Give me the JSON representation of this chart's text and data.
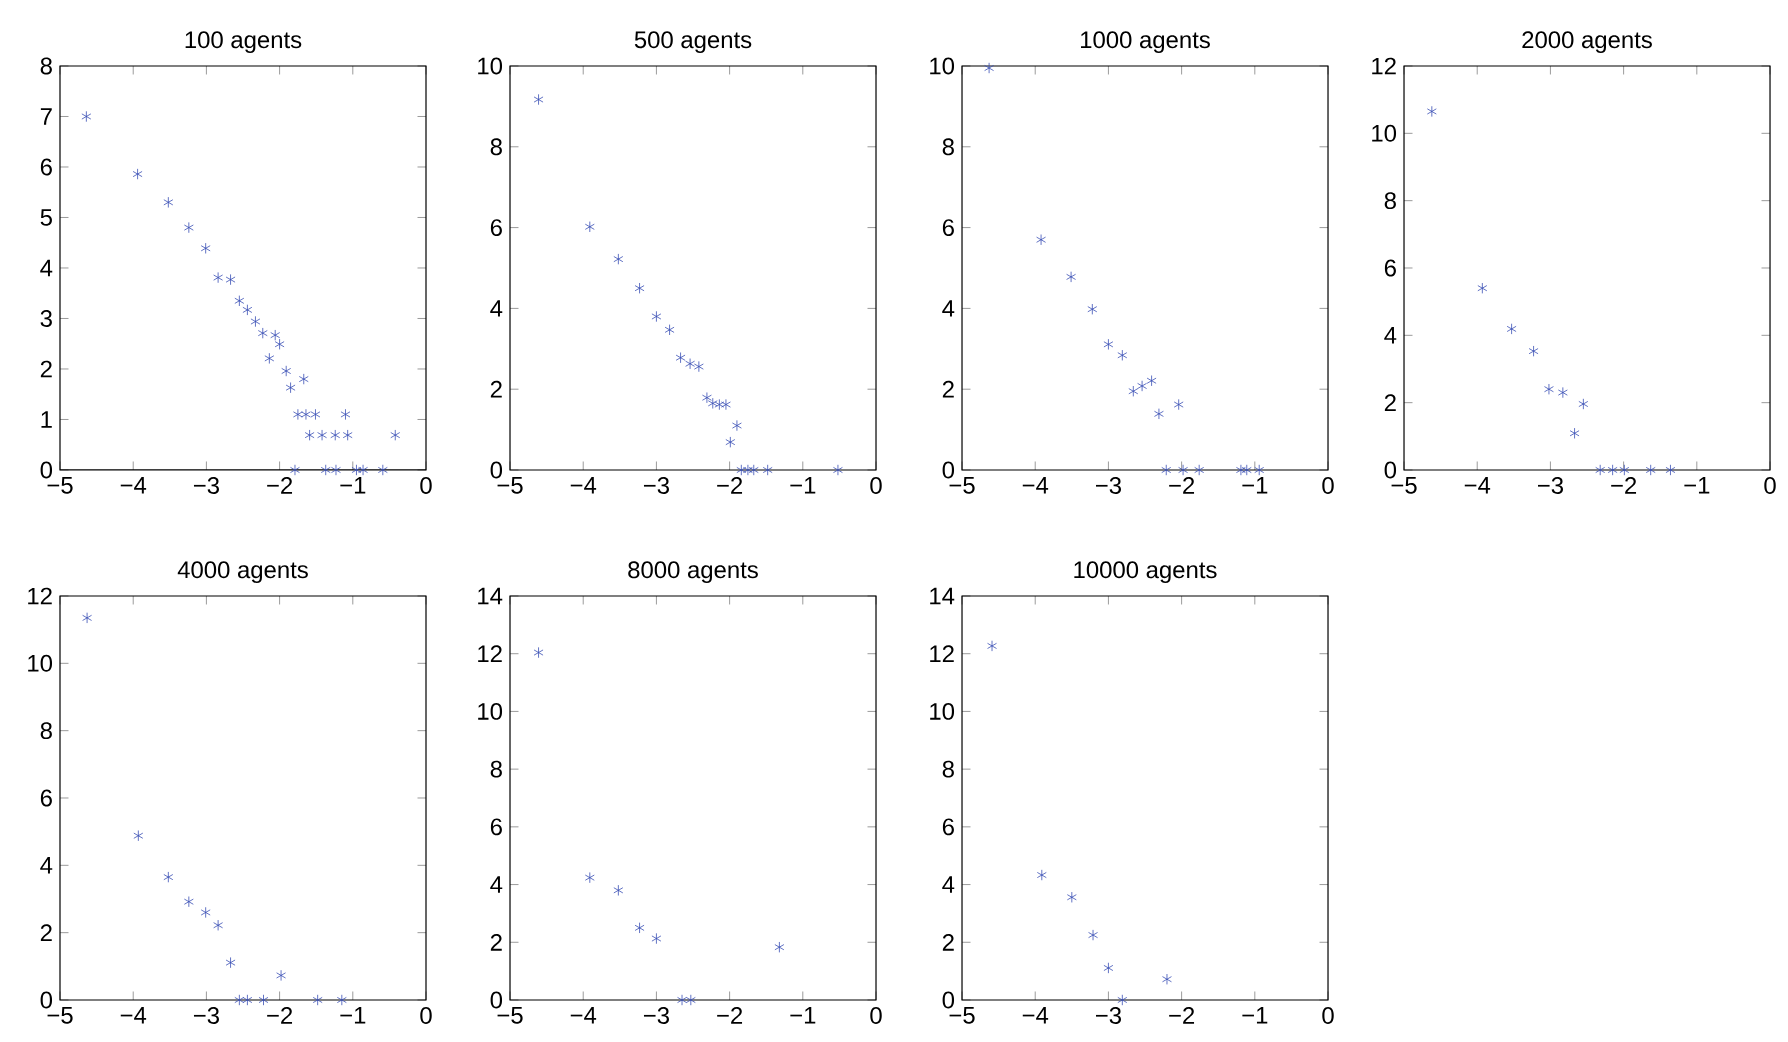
{
  "chart_data": [
    {
      "type": "scatter",
      "title": "100 agents",
      "marker": "cross",
      "color": "#3a4fb5",
      "xlim": [
        -5,
        0
      ],
      "ylim": [
        0,
        8
      ],
      "xticks": [
        {
          "value": -5,
          "label": "−5"
        },
        {
          "value": -4,
          "label": "−4"
        },
        {
          "value": -3,
          "label": "−3"
        },
        {
          "value": -2,
          "label": "−2"
        },
        {
          "value": -1,
          "label": "−1"
        },
        0
      ],
      "yticks": [
        0,
        1,
        2,
        3,
        4,
        5,
        6,
        7,
        8
      ],
      "x": [
        -4.64,
        -3.94,
        -3.52,
        -3.24,
        -3.01,
        -2.84,
        -2.67,
        -2.55,
        -2.44,
        -2.33,
        -2.23,
        -2.06,
        -2.0,
        -2.14,
        -1.91,
        -1.85,
        -1.67,
        -1.75,
        -1.64,
        -1.51,
        -1.59,
        -1.42,
        -1.1,
        -1.24,
        -1.07,
        -1.79,
        -1.37,
        -1.23,
        -0.95,
        -0.86,
        -0.59,
        -0.42
      ],
      "values": [
        7.0,
        5.86,
        5.3,
        4.8,
        4.39,
        3.81,
        3.77,
        3.35,
        3.17,
        2.94,
        2.71,
        2.67,
        2.49,
        2.21,
        1.96,
        1.63,
        1.8,
        1.1,
        1.1,
        1.1,
        0.69,
        0.69,
        1.1,
        0.69,
        0.69,
        0,
        0,
        0,
        0,
        0,
        0,
        0.69
      ]
    },
    {
      "type": "scatter",
      "title": "500 agents",
      "marker": "cross",
      "color": "#3a4fb5",
      "xlim": [
        -5,
        0
      ],
      "ylim": [
        0,
        10
      ],
      "xticks": [
        {
          "value": -5,
          "label": "−5"
        },
        {
          "value": -4,
          "label": "−4"
        },
        {
          "value": -3,
          "label": "−3"
        },
        {
          "value": -2,
          "label": "−2"
        },
        {
          "value": -1,
          "label": "−1"
        },
        0
      ],
      "yticks": [
        0,
        2,
        4,
        6,
        8,
        10
      ],
      "x": [
        -4.61,
        -3.91,
        -3.52,
        -3.23,
        -3.0,
        -2.82,
        -2.67,
        -2.54,
        -2.42,
        -2.31,
        -2.23,
        -2.14,
        -2.05,
        -1.9,
        -1.99,
        -1.84,
        -1.75,
        -1.67,
        -1.48,
        -0.52
      ],
      "values": [
        9.17,
        6.02,
        5.22,
        4.5,
        3.8,
        3.47,
        2.78,
        2.63,
        2.56,
        1.79,
        1.65,
        1.62,
        1.62,
        1.1,
        0.69,
        0,
        0,
        0,
        0,
        0
      ]
    },
    {
      "type": "scatter",
      "title": "1000 agents",
      "marker": "cross",
      "color": "#3a4fb5",
      "xlim": [
        -5,
        0
      ],
      "ylim": [
        0,
        10
      ],
      "xticks": [
        {
          "value": -5,
          "label": "−5"
        },
        {
          "value": -4,
          "label": "−4"
        },
        {
          "value": -3,
          "label": "−3"
        },
        {
          "value": -2,
          "label": "−2"
        },
        {
          "value": -1,
          "label": "−1"
        },
        0
      ],
      "yticks": [
        0,
        2,
        4,
        6,
        8,
        10
      ],
      "x": [
        -4.63,
        -3.92,
        -3.51,
        -3.22,
        -3.0,
        -2.81,
        -2.66,
        -2.54,
        -2.41,
        -2.31,
        -2.04,
        -2.21,
        -1.98,
        -1.76,
        -1.19,
        -1.11,
        -0.94
      ],
      "values": [
        9.95,
        5.7,
        4.78,
        3.98,
        3.11,
        2.84,
        1.95,
        2.08,
        2.21,
        1.39,
        1.62,
        0,
        0,
        0,
        0,
        0,
        0
      ]
    },
    {
      "type": "scatter",
      "title": "2000 agents",
      "marker": "cross",
      "color": "#3a4fb5",
      "xlim": [
        -5,
        0
      ],
      "ylim": [
        0,
        12
      ],
      "xticks": [
        {
          "value": -5,
          "label": "−5"
        },
        {
          "value": -4,
          "label": "−4"
        },
        {
          "value": -3,
          "label": "−3"
        },
        {
          "value": -2,
          "label": "−2"
        },
        {
          "value": -1,
          "label": "−1"
        },
        0
      ],
      "yticks": [
        0,
        2,
        4,
        6,
        8,
        10,
        12
      ],
      "x": [
        -4.62,
        -3.93,
        -3.53,
        -3.23,
        -3.02,
        -2.83,
        -2.55,
        -2.67,
        -2.32,
        -2.15,
        -1.99,
        -1.63,
        -1.36
      ],
      "values": [
        10.65,
        5.4,
        4.19,
        3.53,
        2.4,
        2.3,
        1.96,
        1.09,
        0,
        0,
        0,
        0,
        0
      ]
    },
    {
      "type": "scatter",
      "title": "4000 agents",
      "marker": "cross",
      "color": "#3a4fb5",
      "xlim": [
        -5,
        0
      ],
      "ylim": [
        0,
        12
      ],
      "xticks": [
        {
          "value": -5,
          "label": "−5"
        },
        {
          "value": -4,
          "label": "−4"
        },
        {
          "value": -3,
          "label": "−3"
        },
        {
          "value": -2,
          "label": "−2"
        },
        {
          "value": -1,
          "label": "−1"
        },
        0
      ],
      "yticks": [
        0,
        2,
        4,
        6,
        8,
        10,
        12
      ],
      "x": [
        -4.63,
        -3.93,
        -3.52,
        -3.24,
        -3.01,
        -2.84,
        -2.67,
        -2.55,
        -2.44,
        -2.22,
        -1.98,
        -1.48,
        -1.15
      ],
      "values": [
        11.35,
        4.88,
        3.65,
        2.92,
        2.6,
        2.22,
        1.11,
        0,
        0,
        0,
        0.73,
        0,
        0
      ]
    },
    {
      "type": "scatter",
      "title": "8000 agents",
      "marker": "cross",
      "color": "#3a4fb5",
      "xlim": [
        -5,
        0
      ],
      "ylim": [
        0,
        14
      ],
      "xticks": [
        {
          "value": -5,
          "label": "−5"
        },
        {
          "value": -4,
          "label": "−4"
        },
        {
          "value": -3,
          "label": "−3"
        },
        {
          "value": -2,
          "label": "−2"
        },
        {
          "value": -1,
          "label": "−1"
        },
        0
      ],
      "yticks": [
        0,
        2,
        4,
        6,
        8,
        10,
        12,
        14
      ],
      "x": [
        -4.61,
        -3.91,
        -3.52,
        -3.23,
        -3.0,
        -2.65,
        -2.53,
        -1.32
      ],
      "values": [
        12.04,
        4.24,
        3.8,
        2.5,
        2.13,
        0,
        0,
        1.83
      ]
    },
    {
      "type": "scatter",
      "title": "10000 agents",
      "marker": "cross",
      "color": "#3a4fb5",
      "xlim": [
        -5,
        0
      ],
      "ylim": [
        0,
        14
      ],
      "xticks": [
        {
          "value": -5,
          "label": "−5"
        },
        {
          "value": -4,
          "label": "−4"
        },
        {
          "value": -3,
          "label": "−3"
        },
        {
          "value": -2,
          "label": "−2"
        },
        {
          "value": -1,
          "label": "−1"
        },
        0
      ],
      "yticks": [
        0,
        2,
        4,
        6,
        8,
        10,
        12,
        14
      ],
      "x": [
        -4.59,
        -3.91,
        -3.5,
        -3.21,
        -3.0,
        -2.81,
        -2.2
      ],
      "values": [
        12.27,
        4.33,
        3.56,
        2.25,
        1.11,
        0,
        0.72
      ]
    }
  ]
}
